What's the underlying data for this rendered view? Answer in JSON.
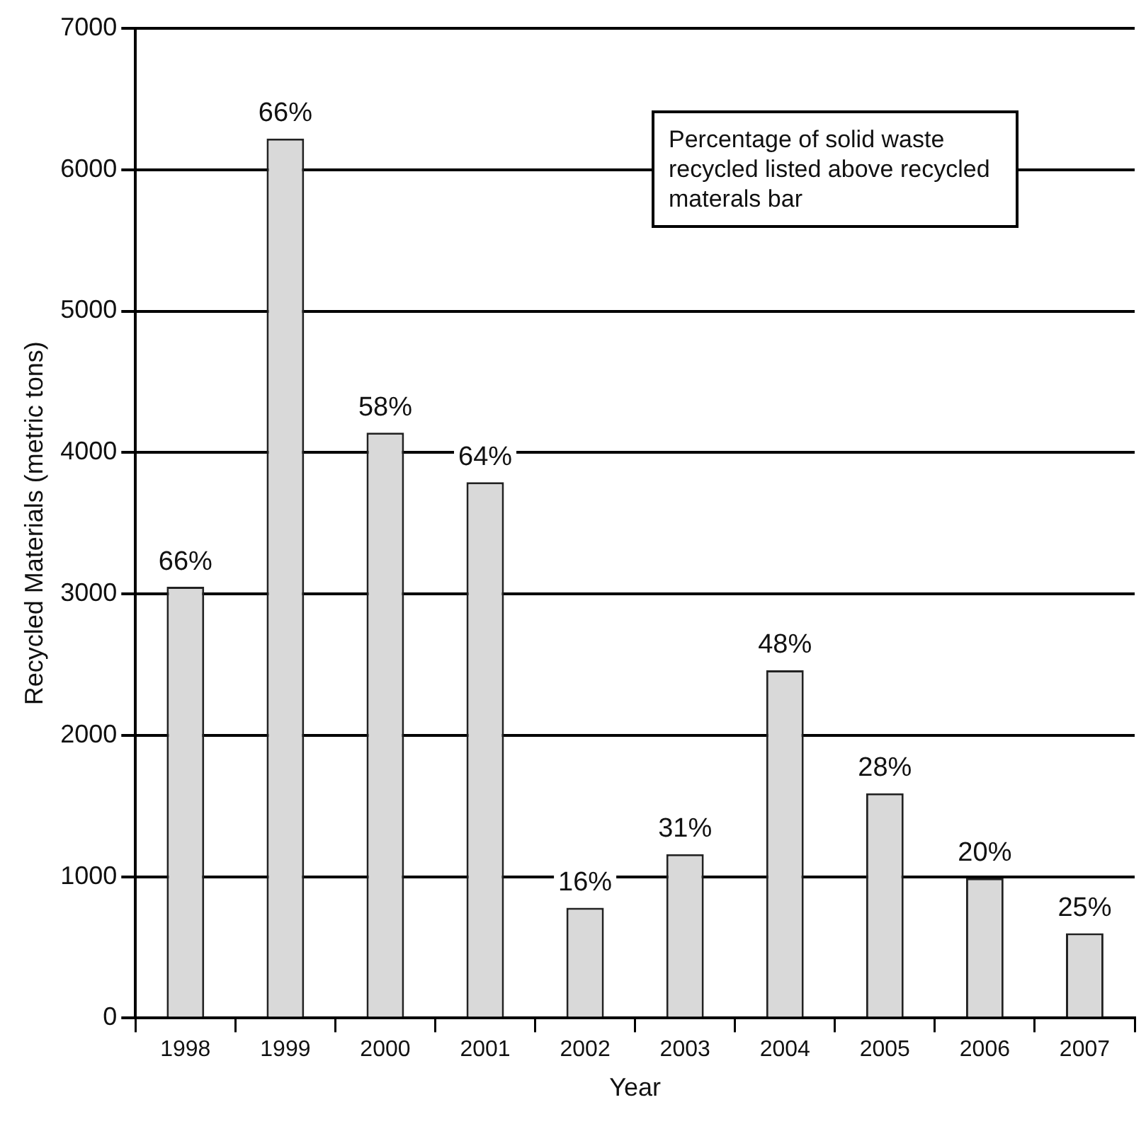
{
  "chart_data": {
    "type": "bar",
    "xlabel": "Year",
    "ylabel": "Recycled Materials (metric tons)",
    "categories": [
      "1998",
      "1999",
      "2000",
      "2001",
      "2002",
      "2003",
      "2004",
      "2005",
      "2006",
      "2007"
    ],
    "values": [
      3050,
      6220,
      4140,
      3790,
      780,
      1160,
      2460,
      1590,
      990,
      600
    ],
    "color": "#d9d9d9",
    "ylim": [
      0,
      7000
    ],
    "yticks": [
      0,
      1000,
      2000,
      3000,
      4000,
      5000,
      6000,
      7000
    ],
    "grid": "y",
    "annotations": [
      "Percentage of solid waste recycled listed above recycled materals bar",
      {
        "text": "66%",
        "x": "1998",
        "y": 3050
      },
      {
        "text": "66%",
        "x": "1999",
        "y": 6220
      },
      {
        "text": "58%",
        "x": "2000",
        "y": 4140
      },
      {
        "text": "64%",
        "x": "2001",
        "y": 3790
      },
      {
        "text": "16%",
        "x": "2002",
        "y": 780
      },
      {
        "text": "31%",
        "x": "2003",
        "y": 1160
      },
      {
        "text": "48%",
        "x": "2004",
        "y": 2460
      },
      {
        "text": "28%",
        "x": "2005",
        "y": 1590
      },
      {
        "text": "20%",
        "x": "2006",
        "y": 990
      },
      {
        "text": "25%",
        "x": "2007",
        "y": 600
      }
    ]
  }
}
